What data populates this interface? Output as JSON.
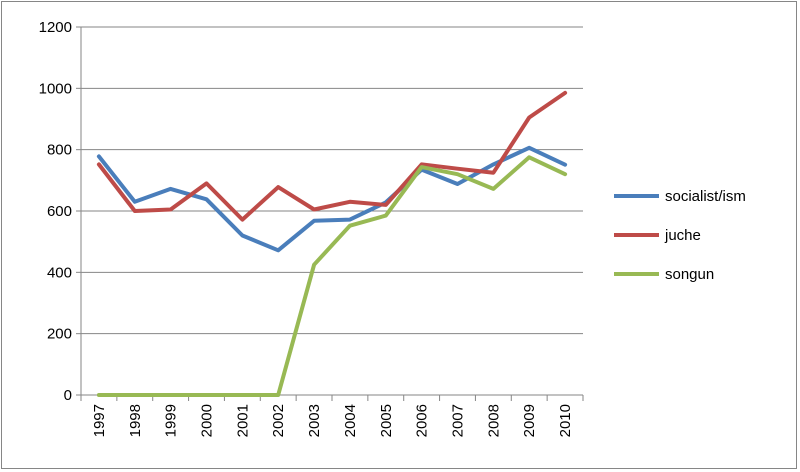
{
  "chart_data": {
    "type": "line",
    "title": "",
    "xlabel": "",
    "ylabel": "",
    "x": [
      "1997",
      "1998",
      "1999",
      "2000",
      "2001",
      "2002",
      "2003",
      "2004",
      "2005",
      "2006",
      "2007",
      "2008",
      "2009",
      "2010"
    ],
    "ylim": [
      0,
      1200
    ],
    "yticks": [
      0,
      200,
      400,
      600,
      800,
      1000,
      1200
    ],
    "grid": true,
    "legend_position": "right",
    "series": [
      {
        "name": "socialist/ism",
        "color": "#4a7ebb",
        "values": [
          778,
          630,
          672,
          638,
          520,
          472,
          568,
          572,
          628,
          735,
          688,
          752,
          806,
          751
        ]
      },
      {
        "name": "juche",
        "color": "#be4b48",
        "values": [
          752,
          600,
          605,
          690,
          572,
          678,
          605,
          630,
          620,
          752,
          738,
          725,
          905,
          985
        ]
      },
      {
        "name": "songun",
        "color": "#98b954",
        "values": [
          0,
          0,
          0,
          0,
          0,
          0,
          425,
          552,
          585,
          743,
          720,
          672,
          775,
          720
        ]
      }
    ]
  }
}
